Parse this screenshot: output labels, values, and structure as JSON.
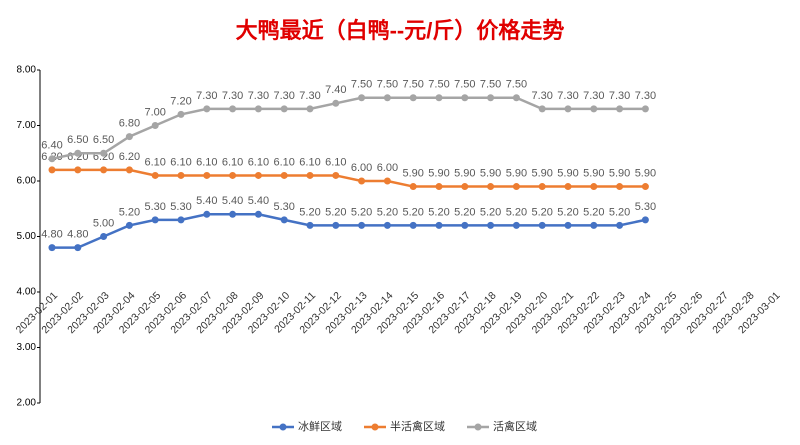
{
  "chart_data": {
    "type": "line",
    "title": "大鸭最近（白鸭--元/斤）价格走势",
    "categories": [
      "2023-02-01",
      "2023-02-02",
      "2023-02-03",
      "2023-02-04",
      "2023-02-05",
      "2023-02-06",
      "2023-02-07",
      "2023-02-08",
      "2023-02-09",
      "2023-02-10",
      "2023-02-11",
      "2023-02-12",
      "2023-02-13",
      "2023-02-14",
      "2023-02-15",
      "2023-02-16",
      "2023-02-17",
      "2023-02-18",
      "2023-02-19",
      "2023-02-20",
      "2023-02-21",
      "2023-02-22",
      "2023-02-23",
      "2023-02-24",
      "2023-02-25",
      "2023-02-26",
      "2023-02-27",
      "2023-02-28",
      "2023-03-01"
    ],
    "series": [
      {
        "name": "冰鲜区域",
        "color": "#4472c4",
        "values": [
          4.8,
          4.8,
          5.0,
          5.2,
          5.3,
          5.3,
          5.4,
          5.4,
          5.4,
          5.3,
          5.2,
          5.2,
          5.2,
          5.2,
          5.2,
          5.2,
          5.2,
          5.2,
          5.2,
          5.2,
          5.2,
          5.2,
          5.2,
          5.3,
          null,
          null,
          null,
          null,
          null
        ],
        "value_labels": [
          "4.80",
          "4.80",
          "5.00",
          "5.20",
          "5.30",
          "5.30",
          "5.40",
          "5.40",
          "5.40",
          "5.30",
          "5.20",
          "5.20",
          "5.20",
          "5.20",
          "5.20",
          "5.20",
          "5.20",
          "5.20",
          "5.20",
          "5.20",
          "5.20",
          "5.20",
          "5.20",
          "5.30",
          null,
          null,
          null,
          null,
          null
        ]
      },
      {
        "name": "半活禽区域",
        "color": "#ed7d31",
        "values": [
          6.2,
          6.2,
          6.2,
          6.2,
          6.1,
          6.1,
          6.1,
          6.1,
          6.1,
          6.1,
          6.1,
          6.1,
          6.0,
          6.0,
          5.9,
          5.9,
          5.9,
          5.9,
          5.9,
          5.9,
          5.9,
          5.9,
          5.9,
          5.9,
          null,
          null,
          null,
          null,
          null
        ],
        "value_labels": [
          "6.20",
          "6.20",
          "6.20",
          "6.20",
          "6.10",
          "6.10",
          "6.10",
          "6.10",
          "6.10",
          "6.10",
          "6.10",
          "6.10",
          "6.00",
          "6.00",
          "5.90",
          "5.90",
          "5.90",
          "5.90",
          "5.90",
          "5.90",
          "5.90",
          "5.90",
          "5.90",
          "5.90",
          null,
          null,
          null,
          null,
          null
        ]
      },
      {
        "name": "活禽区域",
        "color": "#a5a5a5",
        "values": [
          6.4,
          6.5,
          6.5,
          6.8,
          7.0,
          7.2,
          7.3,
          7.3,
          7.3,
          7.3,
          7.3,
          7.4,
          7.5,
          7.5,
          7.5,
          7.5,
          7.5,
          7.5,
          7.5,
          7.3,
          7.3,
          7.3,
          7.3,
          7.3,
          null,
          null,
          null,
          null,
          null
        ],
        "value_labels": [
          "6.40",
          "6.50",
          "6.50",
          "6.80",
          "7.00",
          "7.20",
          "7.30",
          "7.30",
          "7.30",
          "7.30",
          "7.30",
          "7.40",
          "7.50",
          "7.50",
          "7.50",
          "7.50",
          "7.50",
          "7.50",
          "7.50",
          "7.30",
          "7.30",
          "7.30",
          "7.30",
          "7.30",
          null,
          null,
          null,
          null,
          null
        ]
      }
    ],
    "ylim": [
      2,
      8
    ],
    "yticks": [
      {
        "value": 2,
        "label": "2.00"
      },
      {
        "value": 3,
        "label": "3.00"
      },
      {
        "value": 4,
        "label": "4.00"
      },
      {
        "value": 5,
        "label": "5.00"
      },
      {
        "value": 6,
        "label": "6.00"
      },
      {
        "value": 7,
        "label": "7.00"
      },
      {
        "value": 8,
        "label": "8.00"
      }
    ],
    "legend": "bottom"
  }
}
